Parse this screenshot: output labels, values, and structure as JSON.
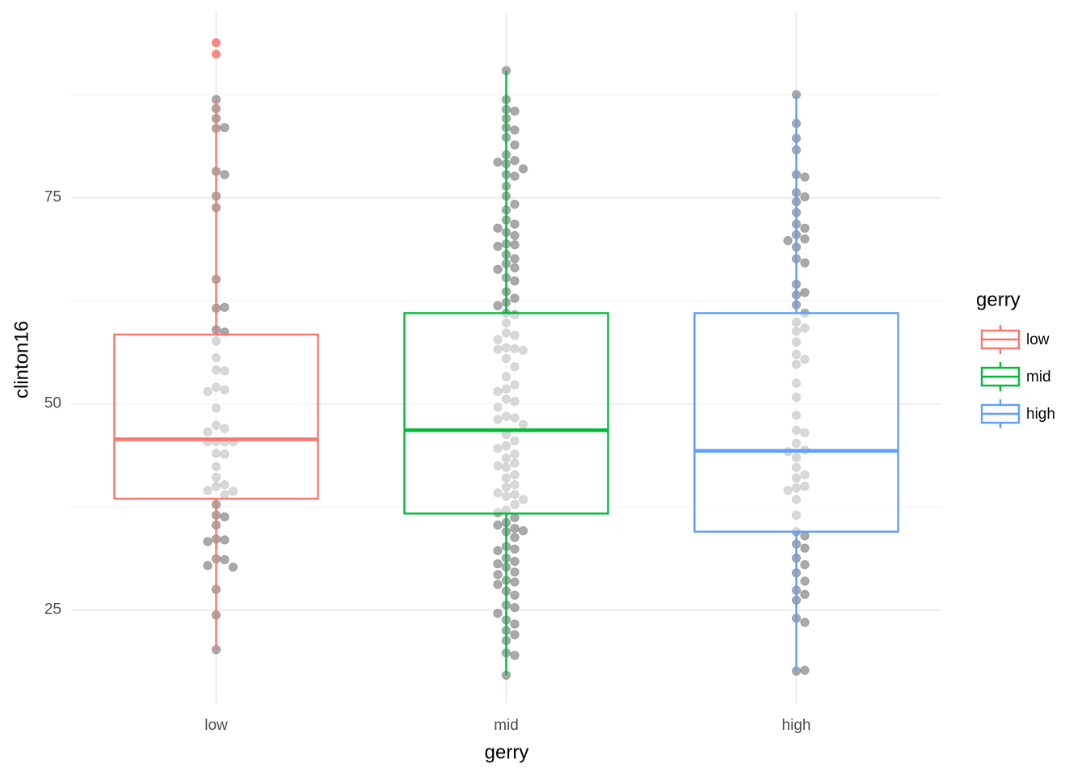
{
  "chart_data": {
    "type": "boxplot",
    "x_label": "gerry",
    "y_label": "clinton16",
    "ylim": [
      13.7,
      97.5
    ],
    "yticks": [
      25,
      50,
      75
    ],
    "minor_yticks": [
      37.5,
      62.5,
      87.5
    ],
    "grid": true,
    "legend_title": "gerry",
    "legend_position": "right",
    "point_color": "#8c8c8c",
    "series": [
      {
        "name": "low",
        "color": "#F8766D",
        "min": 20.2,
        "q1": 38.5,
        "median": 45.7,
        "q3": 58.4,
        "max": 86.9,
        "outliers": [
          93.8,
          92.4
        ],
        "points": [
          86.9,
          85.8,
          84.6,
          83.4,
          83.5,
          78.2,
          77.8,
          75.2,
          73.8,
          65.1,
          61.6,
          61.7,
          59.0,
          58.7,
          57.6,
          55.6,
          54.1,
          54.0,
          52.0,
          51.7,
          51.5,
          49.5,
          47.4,
          47.0,
          46.6,
          45.4,
          45.4,
          45.4,
          45.4,
          44.0,
          43.9,
          42.4,
          41.1,
          40.2,
          40.0,
          39.5,
          39.4,
          39.0,
          37.8,
          36.5,
          36.3,
          35.3,
          33.6,
          33.5,
          33.3,
          31.2,
          31.1,
          30.4,
          30.2,
          27.5,
          24.4,
          20.2
        ]
      },
      {
        "name": "mid",
        "color": "#00BA38",
        "min": 17.1,
        "q1": 36.7,
        "median": 46.8,
        "q3": 61.0,
        "max": 90.4,
        "outliers": [],
        "points": [
          90.4,
          86.9,
          85.7,
          85.5,
          84.6,
          83.5,
          83.2,
          82.3,
          81.4,
          80.2,
          79.5,
          79.3,
          79.1,
          78.5,
          77.8,
          77.6,
          76.4,
          75.2,
          74.2,
          73.5,
          72.3,
          71.8,
          71.3,
          70.8,
          70.4,
          69.4,
          69.3,
          69.1,
          68.1,
          67.6,
          67.0,
          66.5,
          66.3,
          65.3,
          64.9,
          63.6,
          62.8,
          62.3,
          61.9,
          61.0,
          60.8,
          59.8,
          58.6,
          58.3,
          57.8,
          56.8,
          56.7,
          56.6,
          56.5,
          55.5,
          54.5,
          53.3,
          52.3,
          51.8,
          51.5,
          50.6,
          50.3,
          49.6,
          48.5,
          48.3,
          48.1,
          47.5,
          46.3,
          45.5,
          44.9,
          44.6,
          43.9,
          43.4,
          42.8,
          42.5,
          42.3,
          41.4,
          41.0,
          40.2,
          39.9,
          39.2,
          39.0,
          38.8,
          38.4,
          37.8,
          37.1,
          36.8,
          36.2,
          35.6,
          35.3,
          34.9,
          34.6,
          34.5,
          33.8,
          32.7,
          32.4,
          32.2,
          31.3,
          30.9,
          30.6,
          30.2,
          29.6,
          29.3,
          28.6,
          28.4,
          28.1,
          27.3,
          26.8,
          25.6,
          25.3,
          24.6,
          23.8,
          23.3,
          22.5,
          22.0,
          21.3,
          19.8,
          19.5,
          17.1
        ]
      },
      {
        "name": "high",
        "color": "#619CFF",
        "min": 17.6,
        "q1": 34.5,
        "median": 44.3,
        "q3": 61.0,
        "max": 87.5,
        "outliers": [],
        "points": [
          87.5,
          84.0,
          82.2,
          80.8,
          77.8,
          77.5,
          75.6,
          75.1,
          74.5,
          73.2,
          71.8,
          71.3,
          70.5,
          70.0,
          69.8,
          69.0,
          67.6,
          67.1,
          64.5,
          63.5,
          63.2,
          62.0,
          61.0,
          59.9,
          59.2,
          58.8,
          57.5,
          56.0,
          55.4,
          54.8,
          52.5,
          50.8,
          48.6,
          46.8,
          46.5,
          45.2,
          44.4,
          44.2,
          43.5,
          42.3,
          41.4,
          41.0,
          40.0,
          39.8,
          39.5,
          38.4,
          36.5,
          34.5,
          34.0,
          33.0,
          32.5,
          31.3,
          30.5,
          29.5,
          28.5,
          27.4,
          26.9,
          26.2,
          24.0,
          23.5,
          17.6,
          17.7
        ]
      }
    ]
  }
}
